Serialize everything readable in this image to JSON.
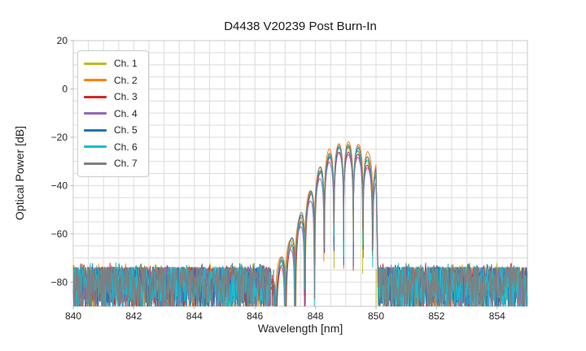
{
  "chart_data": {
    "type": "line",
    "title": "D4438 V20239 Post Burn-In",
    "xlabel": "Wavelength [nm]",
    "ylabel": "Optical Power [dB]",
    "xlim": [
      840,
      855
    ],
    "ylim": [
      -90,
      20
    ],
    "xticks": [
      840,
      842,
      844,
      846,
      848,
      850,
      852,
      854
    ],
    "yticks": [
      20,
      0,
      -20,
      -40,
      -60,
      -80
    ],
    "minor_grid_step_x_nm": 0.5,
    "minor_grid_step_y_dB": 5,
    "grid": true,
    "legend_position": "upper-left",
    "colors": {
      "grid": "#dcdcdc",
      "frame": "#c8c8c8",
      "tick": "#b0b0b0",
      "text": "#262626"
    },
    "series": [
      {
        "label": "Ch. 1",
        "color": "#bcbd22",
        "bias_dB": -0.8,
        "right_bias_dB": 0.0,
        "period_nm": 0.3148,
        "anchor_offset_nm": -0.004,
        "notch_eps": 0.0012
      },
      {
        "label": "Ch. 2",
        "color": "#ff7f0e",
        "bias_dB": 1.4,
        "right_bias_dB": 2.6,
        "period_nm": 0.3258,
        "anchor_offset_nm": 0.003,
        "notch_eps": 0.0013
      },
      {
        "label": "Ch. 3",
        "color": "#d62728",
        "bias_dB": -2.2,
        "right_bias_dB": 0.5,
        "period_nm": 0.3176,
        "anchor_offset_nm": 0.001,
        "notch_eps": 0.0011
      },
      {
        "label": "Ch. 4",
        "color": "#9467bd",
        "bias_dB": -3.2,
        "right_bias_dB": -0.5,
        "period_nm": 0.3232,
        "anchor_offset_nm": -0.002,
        "notch_eps": 0.0012
      },
      {
        "label": "Ch. 5",
        "color": "#1f77b4",
        "bias_dB": -0.2,
        "right_bias_dB": 2.0,
        "period_nm": 0.3196,
        "anchor_offset_nm": 0.004,
        "notch_eps": 0.0014
      },
      {
        "label": "Ch. 6",
        "color": "#17becf",
        "bias_dB": -0.8,
        "right_bias_dB": 0.3,
        "period_nm": 0.3214,
        "anchor_offset_nm": -0.003,
        "notch_eps": 0.0012
      },
      {
        "label": "Ch. 7",
        "color": "#7f7f7f",
        "bias_dB": 0.6,
        "right_bias_dB": 0.8,
        "period_nm": 0.3188,
        "anchor_offset_nm": 0.0,
        "notch_eps": 0.0012
      }
    ],
    "passband": {
      "start_nm": 846.53,
      "end_nm": 850.06,
      "anchor_nm": 849.09,
      "ripple_scale_dB": 18,
      "right_bias_onset_nm": 849.25,
      "right_bias_ramp_nm": 0.3,
      "lobe_jitter_dB": 1.8,
      "envelope_points": [
        [
          846.53,
          -80
        ],
        [
          846.85,
          -71
        ],
        [
          847.17,
          -63
        ],
        [
          847.49,
          -53.5
        ],
        [
          847.81,
          -43
        ],
        [
          848.13,
          -33.5
        ],
        [
          848.45,
          -27
        ],
        [
          848.77,
          -24
        ],
        [
          849.09,
          -23.5
        ],
        [
          849.41,
          -25.5
        ],
        [
          849.73,
          -29.5
        ],
        [
          850.0,
          -34
        ],
        [
          850.06,
          -75
        ]
      ]
    },
    "noise_floor": {
      "regions_nm": [
        [
          840.0,
          846.53
        ],
        [
          850.06,
          855.0
        ]
      ],
      "top_dB": -73.8,
      "spread_dB": 19,
      "spike_prob": 0.02,
      "spike_above_dB": 1.8,
      "clip_dB": -90
    },
    "edge_spikes": [
      {
        "series_index": 0,
        "nm": 850.005,
        "top_dB": -74.5
      },
      {
        "series_index": 4,
        "nm": 846.615,
        "top_dB": -75.0
      },
      {
        "series_index": 2,
        "nm": 846.575,
        "top_dB": -77.0
      }
    ],
    "sampling": {
      "passband_step_nm": 0.004,
      "noise_step_nm": 0.013
    }
  }
}
